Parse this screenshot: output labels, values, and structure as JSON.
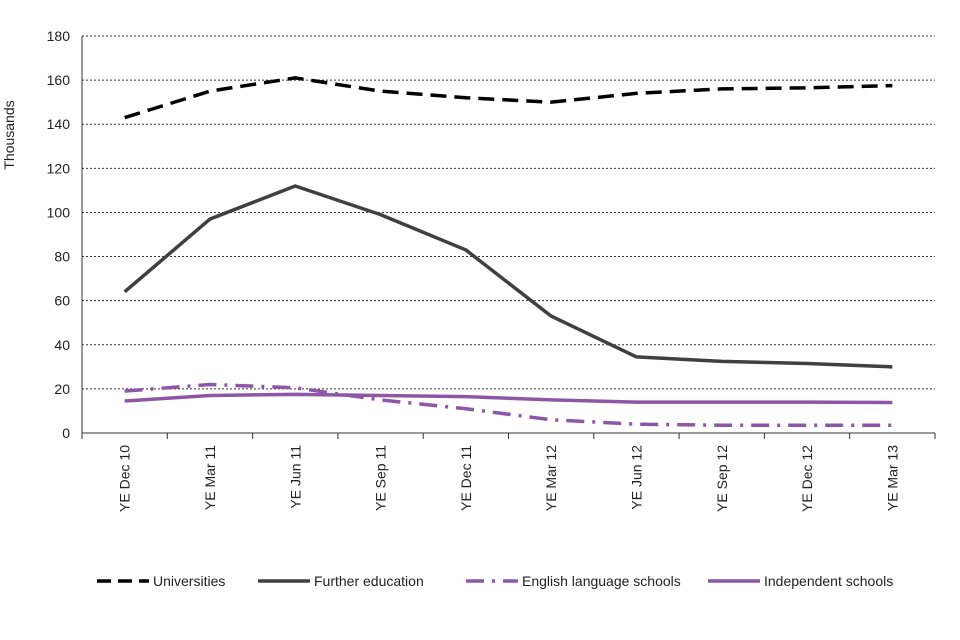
{
  "chart_data": {
    "type": "line",
    "title": "",
    "xlabel": "",
    "ylabel": "Thousands",
    "ylim": [
      0,
      180
    ],
    "yticks": [
      0,
      20,
      40,
      60,
      80,
      100,
      120,
      140,
      160,
      180
    ],
    "grid": true,
    "legend_position": "bottom",
    "categories": [
      "YE Dec 10",
      "YE Mar 11",
      "YE Jun 11",
      "YE Sep 11",
      "YE Dec 11",
      "YE Mar 12",
      "YE Jun 12",
      "YE Sep 12",
      "YE Dec 12",
      "YE Mar 13"
    ],
    "series": [
      {
        "name": "Universities",
        "color": "#000000",
        "style": "dash",
        "values": [
          143,
          155,
          161,
          155,
          152,
          150,
          154,
          156,
          156.5,
          157.5
        ]
      },
      {
        "name": "Further education",
        "color": "#404040",
        "style": "solid",
        "values": [
          64,
          97,
          112,
          99,
          83,
          53,
          34.5,
          32.5,
          31.5,
          30
        ]
      },
      {
        "name": "English language schools",
        "color": "#8e57a5",
        "style": "dashdot",
        "values": [
          19,
          22,
          20.5,
          15,
          11,
          6,
          4,
          3.5,
          3.5,
          3.5
        ]
      },
      {
        "name": "Independent schools",
        "color": "#8e57a5",
        "style": "solid",
        "values": [
          14.5,
          17,
          17.5,
          17,
          16.5,
          15,
          14,
          14,
          14,
          13.8
        ]
      }
    ]
  }
}
